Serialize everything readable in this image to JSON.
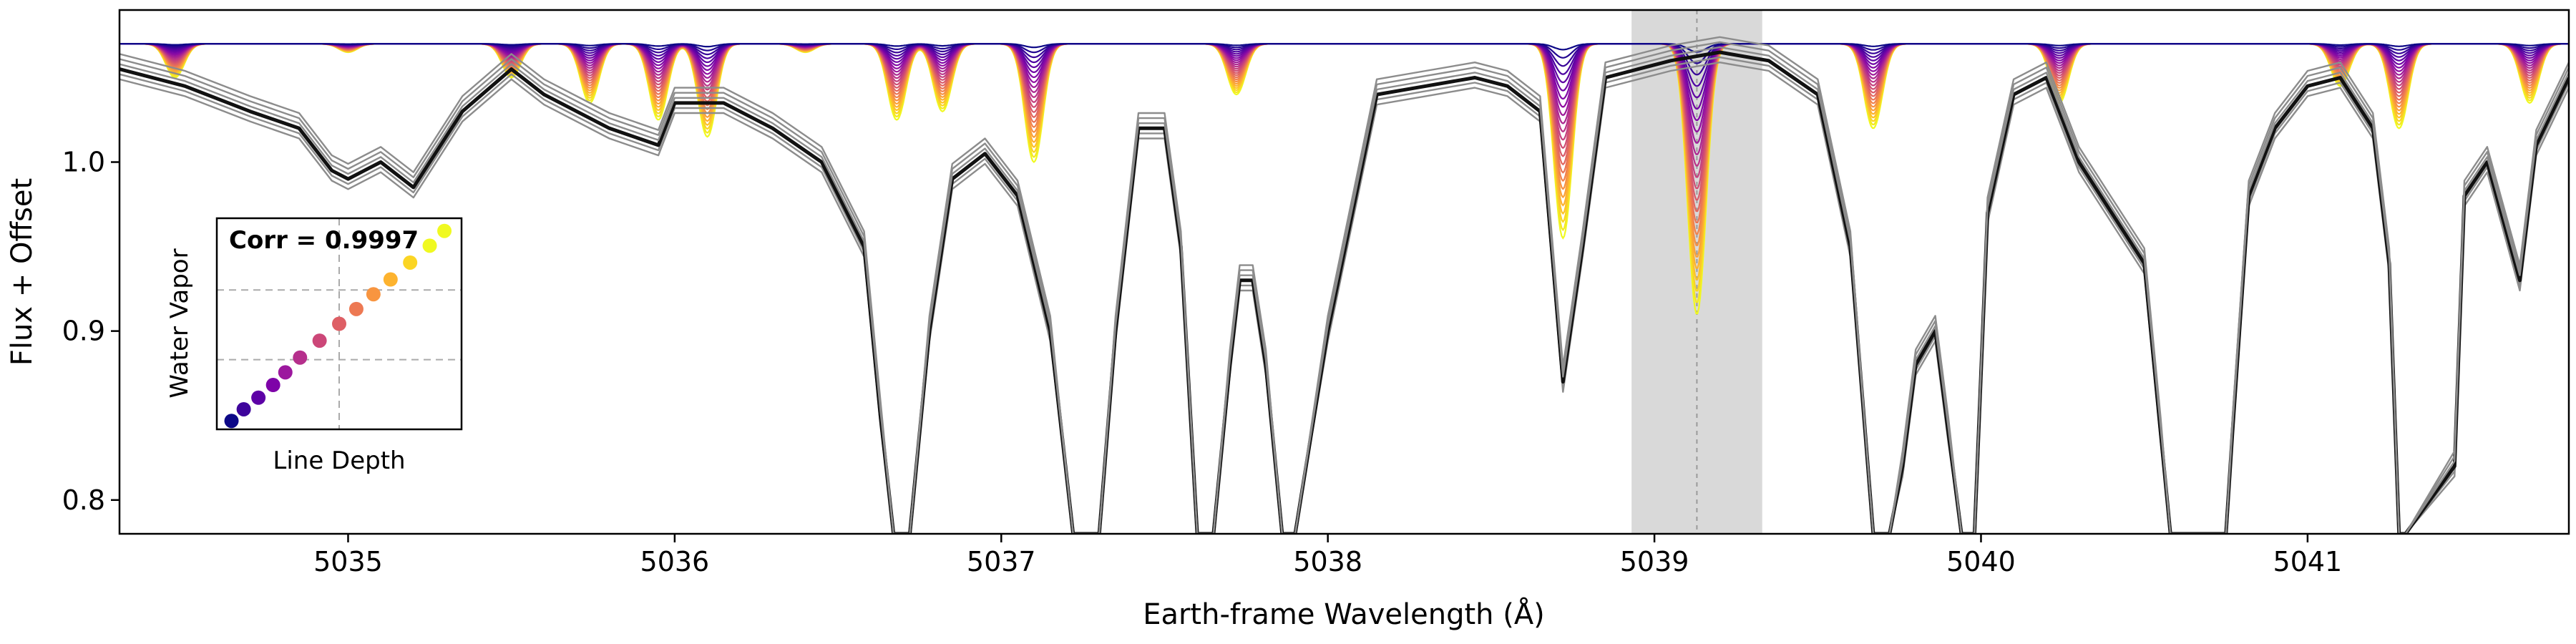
{
  "chart_data": [
    {
      "type": "line",
      "xlabel": "Earth-frame Wavelength (Å)",
      "ylabel": "Flux + Offset",
      "xlim": [
        5034.3,
        5041.8
      ],
      "ylim": [
        0.78,
        1.09
      ],
      "xticks": [
        5035,
        5036,
        5037,
        5038,
        5039,
        5040,
        5041
      ],
      "xtick_labels": [
        "5035",
        "5036",
        "5037",
        "5038",
        "5039",
        "5040",
        "5041"
      ],
      "yticks": [
        0.8,
        0.9,
        1.0
      ],
      "ytick_labels": [
        "0.8",
        "0.9",
        "1.0"
      ],
      "grid": false,
      "highlight_band": {
        "x_range": [
          5038.93,
          5039.33
        ],
        "color": "#d9d9d9"
      },
      "reference_line": {
        "x": 5039.13
      },
      "stellar_spectrum": {
        "color": "#000000",
        "x": [
          5034.3,
          5034.5,
          5034.7,
          5034.85,
          5034.95,
          5035.0,
          5035.1,
          5035.2,
          5035.35,
          5035.5,
          5035.6,
          5035.8,
          5035.95,
          5036.0,
          5036.15,
          5036.3,
          5036.45,
          5036.58,
          5036.63,
          5036.67,
          5036.72,
          5036.78,
          5036.85,
          5036.95,
          5037.05,
          5037.15,
          5037.22,
          5037.26,
          5037.3,
          5037.35,
          5037.42,
          5037.5,
          5037.55,
          5037.6,
          5037.65,
          5037.7,
          5037.73,
          5037.77,
          5037.81,
          5037.86,
          5037.9,
          5038.0,
          5038.15,
          5038.3,
          5038.45,
          5038.55,
          5038.65,
          5038.72,
          5038.78,
          5038.85,
          5038.95,
          5039.05,
          5039.2,
          5039.35,
          5039.5,
          5039.6,
          5039.67,
          5039.72,
          5039.76,
          5039.8,
          5039.86,
          5039.9,
          5039.94,
          5039.98,
          5040.02,
          5040.1,
          5040.2,
          5040.3,
          5040.4,
          5040.5,
          5040.55,
          5040.58,
          5040.6,
          5040.75,
          5040.77,
          5040.82,
          5040.9,
          5041.0,
          5041.1,
          5041.2,
          5041.25,
          5041.28,
          5041.3,
          5041.45,
          5041.48,
          5041.55,
          5041.65,
          5041.7,
          5041.8
        ],
        "y": [
          1.055,
          1.045,
          1.03,
          1.02,
          0.995,
          0.99,
          1.0,
          0.985,
          1.03,
          1.055,
          1.04,
          1.02,
          1.01,
          1.035,
          1.035,
          1.02,
          1.0,
          0.95,
          0.85,
          0.78,
          0.78,
          0.9,
          0.99,
          1.005,
          0.98,
          0.9,
          0.78,
          0.78,
          0.78,
          0.9,
          1.02,
          1.02,
          0.95,
          0.78,
          0.78,
          0.88,
          0.93,
          0.93,
          0.88,
          0.78,
          0.78,
          0.9,
          1.04,
          1.045,
          1.05,
          1.045,
          1.03,
          0.87,
          0.95,
          1.05,
          1.055,
          1.06,
          1.065,
          1.06,
          1.04,
          0.95,
          0.78,
          0.78,
          0.82,
          0.88,
          0.9,
          0.84,
          0.78,
          0.78,
          0.97,
          1.04,
          1.05,
          1.0,
          0.97,
          0.94,
          0.84,
          0.78,
          0.78,
          0.78,
          0.84,
          0.98,
          1.02,
          1.045,
          1.05,
          1.02,
          0.94,
          0.78,
          0.78,
          0.82,
          0.98,
          1.0,
          0.93,
          1.01,
          1.05
        ]
      },
      "telluric_lines": [
        {
          "center": 5034.47,
          "min_depth": 0.02
        },
        {
          "center": 5035.0,
          "min_depth": 0.005
        },
        {
          "center": 5035.5,
          "min_depth": 0.02
        },
        {
          "center": 5035.74,
          "min_depth": 0.035
        },
        {
          "center": 5035.95,
          "min_depth": 0.045
        },
        {
          "center": 5036.1,
          "min_depth": 0.055
        },
        {
          "center": 5036.4,
          "min_depth": 0.005
        },
        {
          "center": 5036.68,
          "min_depth": 0.045
        },
        {
          "center": 5036.82,
          "min_depth": 0.04
        },
        {
          "center": 5037.1,
          "min_depth": 0.07
        },
        {
          "center": 5037.72,
          "min_depth": 0.03
        },
        {
          "center": 5038.72,
          "min_depth": 0.115
        },
        {
          "center": 5039.13,
          "min_depth": 0.16
        },
        {
          "center": 5039.67,
          "min_depth": 0.05
        },
        {
          "center": 5040.24,
          "min_depth": 0.035
        },
        {
          "center": 5041.1,
          "min_depth": 0.025
        },
        {
          "center": 5041.28,
          "min_depth": 0.05
        },
        {
          "center": 5041.68,
          "min_depth": 0.035
        }
      ],
      "telluric_model_top": 1.07,
      "n_epochs": 24,
      "colormap": [
        "#0d0887",
        "#5302a3",
        "#8b0aa5",
        "#b83289",
        "#db5c68",
        "#f48849",
        "#febd2a",
        "#f0f921"
      ]
    },
    {
      "type": "scatter",
      "title": "Corr = 0.9997",
      "xlabel": "Line Depth",
      "ylabel": "Water Vapor",
      "xlim": [
        0,
        1
      ],
      "ylim": [
        0,
        1
      ],
      "grid": true,
      "crosshair": {
        "x": 0.5,
        "y1": 0.33,
        "y2": 0.66
      },
      "points": [
        {
          "x": 0.06,
          "y": 0.04,
          "color": "#0d0887"
        },
        {
          "x": 0.11,
          "y": 0.095,
          "color": "#3e049c"
        },
        {
          "x": 0.17,
          "y": 0.15,
          "color": "#5d01a6"
        },
        {
          "x": 0.23,
          "y": 0.21,
          "color": "#7e03a8"
        },
        {
          "x": 0.28,
          "y": 0.27,
          "color": "#9c179e"
        },
        {
          "x": 0.34,
          "y": 0.34,
          "color": "#b52f8c"
        },
        {
          "x": 0.42,
          "y": 0.42,
          "color": "#cc4778"
        },
        {
          "x": 0.5,
          "y": 0.5,
          "color": "#de5f65"
        },
        {
          "x": 0.57,
          "y": 0.57,
          "color": "#ed7953"
        },
        {
          "x": 0.64,
          "y": 0.64,
          "color": "#f89540"
        },
        {
          "x": 0.71,
          "y": 0.71,
          "color": "#fdb32f"
        },
        {
          "x": 0.79,
          "y": 0.79,
          "color": "#fbd524"
        },
        {
          "x": 0.87,
          "y": 0.87,
          "color": "#f0f921"
        },
        {
          "x": 0.93,
          "y": 0.94,
          "color": "#f0f921"
        }
      ]
    }
  ]
}
